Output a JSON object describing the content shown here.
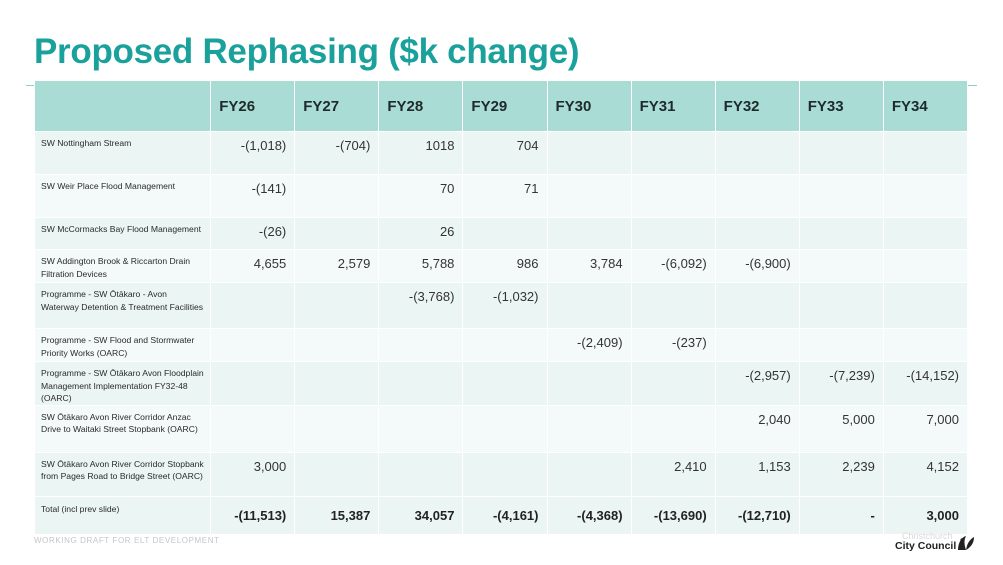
{
  "slide": {
    "title": "Proposed Rephasing ($k change)",
    "footer_left": "WORKING DRAFT FOR ELT DEVELOPMENT",
    "logo_text": "City Council",
    "logo_ghost_text": "Christchurch"
  },
  "table": {
    "columns": [
      "",
      "FY26",
      "FY27",
      "FY28",
      "FY29",
      "FY30",
      "FY31",
      "FY32",
      "FY33",
      "FY34"
    ],
    "rows": [
      {
        "project": "SW Nottingham Stream",
        "values": [
          "-(1,018)",
          "-(704)",
          "1018",
          "704",
          "",
          "",
          "",
          "",
          ""
        ]
      },
      {
        "project": "SW Weir Place Flood Management",
        "values": [
          "-(141)",
          "",
          "70",
          "71",
          "",
          "",
          "",
          "",
          ""
        ]
      },
      {
        "project": "SW McCormacks Bay Flood Management",
        "values": [
          "-(26)",
          "",
          "26",
          "",
          "",
          "",
          "",
          "",
          ""
        ]
      },
      {
        "project": "SW Addington Brook & Riccarton Drain Filtration Devices",
        "values": [
          "4,655",
          "2,579",
          "5,788",
          "986",
          "3,784",
          "-(6,092)",
          "-(6,900)",
          "",
          ""
        ]
      },
      {
        "project": "Programme - SW Ōtākaro - Avon Waterway Detention & Treatment Facilities",
        "values": [
          "",
          "",
          "-(3,768)",
          "-(1,032)",
          "",
          "",
          "",
          "",
          ""
        ]
      },
      {
        "project": "Programme - SW Flood and Stormwater Priority Works (OARC)",
        "values": [
          "",
          "",
          "",
          "",
          "-(2,409)",
          "-(237)",
          "",
          "",
          ""
        ]
      },
      {
        "project": "Programme - SW Ōtākaro Avon Floodplain Management Implementation FY32-48 (OARC)",
        "values": [
          "",
          "",
          "",
          "",
          "",
          "",
          "-(2,957)",
          "-(7,239)",
          "-(14,152)"
        ]
      },
      {
        "project": "SW Ōtākaro Avon River Corridor Anzac Drive to Waitaki Street Stopbank (OARC)",
        "values": [
          "",
          "",
          "",
          "",
          "",
          "",
          "2,040",
          "5,000",
          "7,000"
        ]
      },
      {
        "project": "SW Ōtākaro Avon River Corridor Stopbank from Pages Road to Bridge Street (OARC)",
        "values": [
          "3,000",
          "",
          "",
          "",
          "",
          "2,410",
          "1,153",
          "2,239",
          "4,152"
        ]
      }
    ],
    "total": {
      "project": "Total (incl prev slide)",
      "values": [
        "-(11,513)",
        "15,387",
        "34,057",
        "-(4,161)",
        "-(4,368)",
        "-(13,690)",
        "-(12,710)",
        "-",
        "3,000"
      ]
    }
  },
  "colors": {
    "title": "#1aa19c",
    "header_bg": "#a9dcd5",
    "row_bg": "#ebf6f4",
    "row_alt_bg": "#f4faf9"
  }
}
